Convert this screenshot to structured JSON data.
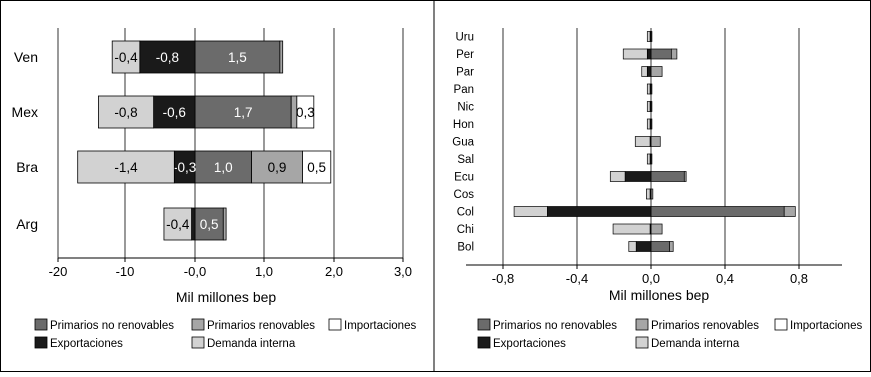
{
  "colors": {
    "primarios_no_renovables": "#6b6b6b",
    "primarios_renovables": "#a6a6a6",
    "importaciones": "#ffffff",
    "exportaciones": "#1a1a1a",
    "demanda_interna": "#d2d2d2"
  },
  "chart_data": [
    {
      "type": "bar",
      "orientation": "horizontal",
      "stacked": true,
      "categories": [
        "Ven",
        "Mex",
        "Bra",
        "Arg"
      ],
      "x_ticks": [
        -20,
        -10,
        0,
        1,
        2,
        3
      ],
      "x_tick_labels": [
        "-20",
        "-10",
        "-0,0",
        "1,0",
        "2,0",
        "3,0"
      ],
      "xlabel": "Mil millones bep",
      "grid": true,
      "series": [
        {
          "name": "Primarios no renovables",
          "color_key": "primarios_no_renovables",
          "values": [
            1.5,
            1.7,
            1.0,
            0.5
          ],
          "labels": [
            "1,5",
            "1,7",
            "1,0",
            "0,5"
          ]
        },
        {
          "name": "Primarios renovables",
          "color_key": "primarios_renovables",
          "values": [
            0.05,
            0.1,
            0.9,
            0.05
          ],
          "labels": [
            "",
            "",
            "0,9",
            ""
          ]
        },
        {
          "name": "Importaciones",
          "color_key": "importaciones",
          "values": [
            0,
            0.3,
            0.5,
            0
          ],
          "labels": [
            "",
            "0,3",
            "0,5",
            ""
          ]
        },
        {
          "name": "Exportaciones",
          "color_key": "exportaciones",
          "values": [
            -0.8,
            -0.6,
            -0.3,
            -0.05
          ],
          "labels": [
            "-0,8",
            "-0,6",
            "-0,3",
            ""
          ]
        },
        {
          "name": "Demanda interna",
          "color_key": "demanda_interna",
          "values": [
            -0.4,
            -0.8,
            -1.4,
            -0.4
          ],
          "labels": [
            "-0,4",
            "-0,8",
            "-1,4",
            "-0,4"
          ]
        }
      ],
      "legend_position": "bottom"
    },
    {
      "type": "bar",
      "orientation": "horizontal",
      "stacked": true,
      "categories": [
        "Uru",
        "Per",
        "Par",
        "Pan",
        "Nic",
        "Hon",
        "Gua",
        "Sal",
        "Ecu",
        "Cos",
        "Col",
        "Chi",
        "Bol"
      ],
      "x_ticks": [
        -0.8,
        -0.4,
        0,
        0.4,
        0.8
      ],
      "x_tick_labels": [
        "-0,8",
        "-0,4",
        "0,0",
        "0,4",
        "0,8"
      ],
      "xlim": [
        -0.8,
        1.0
      ],
      "xlabel": "Mil millones bep",
      "grid": true,
      "series": [
        {
          "name": "Primarios no renovables",
          "color_key": "primarios_no_renovables",
          "values": [
            0,
            0.11,
            0,
            0,
            0,
            0,
            0,
            0,
            0.18,
            0,
            0.72,
            0,
            0.1
          ]
        },
        {
          "name": "Primarios renovables",
          "color_key": "primarios_renovables",
          "values": [
            0.005,
            0.03,
            0.06,
            0.005,
            0.005,
            0.005,
            0.05,
            0.005,
            0.01,
            0.01,
            0.06,
            0.06,
            0.02
          ]
        },
        {
          "name": "Importaciones",
          "color_key": "importaciones",
          "values": [
            0,
            0,
            0,
            0,
            0,
            0,
            0,
            0,
            0,
            0,
            0,
            0,
            0
          ]
        },
        {
          "name": "Exportaciones",
          "color_key": "exportaciones",
          "values": [
            -0.005,
            -0.02,
            -0.02,
            -0.005,
            -0.005,
            -0.005,
            -0.005,
            -0.005,
            -0.14,
            -0.005,
            -0.56,
            -0.005,
            -0.08
          ]
        },
        {
          "name": "Demanda interna",
          "color_key": "demanda_interna",
          "values": [
            -0.015,
            -0.13,
            -0.03,
            -0.015,
            -0.015,
            -0.015,
            -0.08,
            -0.015,
            -0.08,
            -0.02,
            -0.18,
            -0.2,
            -0.04
          ]
        }
      ],
      "legend_position": "bottom"
    }
  ],
  "legend": {
    "primarios_no_renovables": "Primarios no renovables",
    "primarios_renovables": "Primarios renovables",
    "importaciones": "Importaciones",
    "exportaciones": "Exportaciones",
    "demanda_interna": "Demanda interna"
  }
}
